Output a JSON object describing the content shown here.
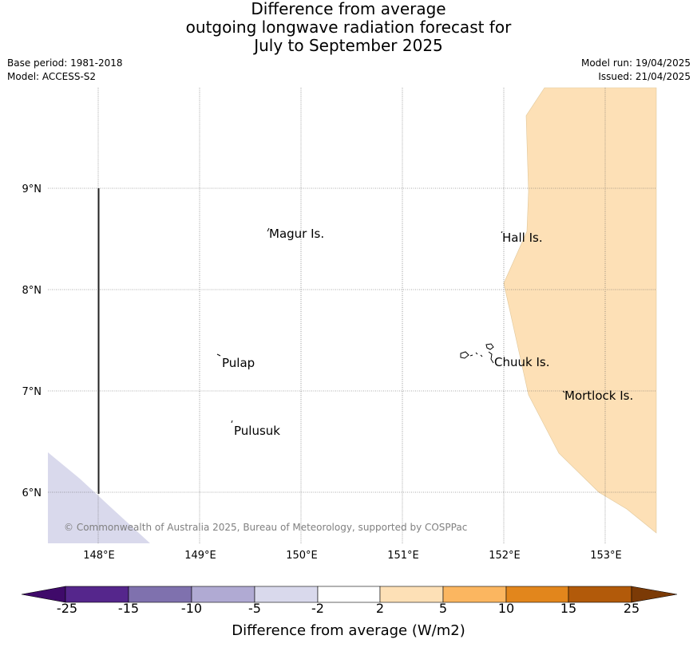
{
  "title": {
    "line1": "Difference from average",
    "line2": "outgoing longwave radiation forecast for",
    "line3": "July to September 2025"
  },
  "meta": {
    "base_period": "Base period: 1981-2018",
    "model": "Model: ACCESS-S2",
    "model_run": "Model run: 19/04/2025",
    "issued": "Issued: 21/04/2025"
  },
  "map": {
    "lat_labels": [
      "9°N",
      "8°N",
      "7°N",
      "6°N"
    ],
    "lon_labels": [
      "148°E",
      "149°E",
      "150°E",
      "151°E",
      "152°E",
      "153°E"
    ],
    "places": [
      "Magur Is.",
      "Hall Is.",
      "Pulap",
      "Chuuk Is.",
      "Mortlock Is.",
      "Pulusuk"
    ],
    "copyright": "© Commonwealth of Australia 2025, Bureau of Meteorology, supported by COSPPac",
    "colors": {
      "positive_2_5": "#fde0b6",
      "negative_5_2": "#d9d9ec"
    }
  },
  "colorbar": {
    "title": "Difference from average (W/m2)",
    "ticks": [
      "-25",
      "-15",
      "-10",
      "-5",
      "-2",
      "2",
      "5",
      "10",
      "15",
      "25"
    ],
    "colors": [
      "#3f0a6a",
      "#55268c",
      "#7f71ae",
      "#b0aad3",
      "#d9d9ec",
      "#ffffff",
      "#fde0b6",
      "#fbb660",
      "#e2861c",
      "#b25a0a",
      "#7b3a06"
    ]
  }
}
